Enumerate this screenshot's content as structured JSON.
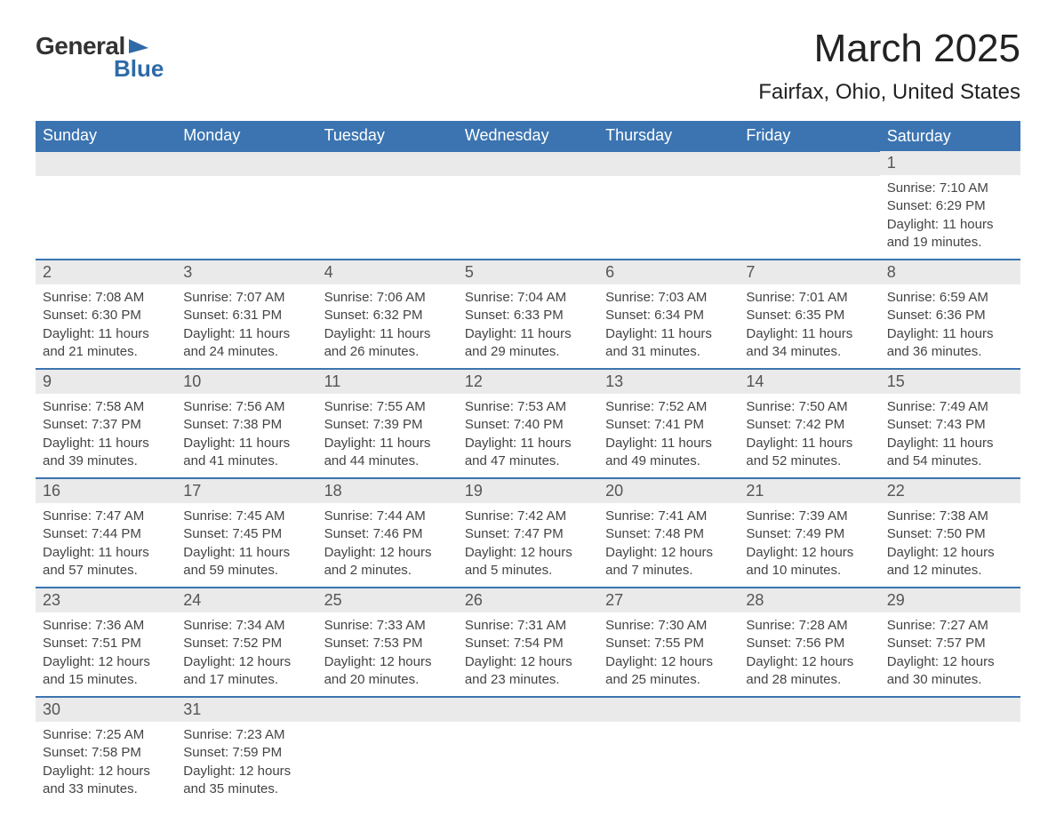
{
  "logo": {
    "general": "General",
    "blue": "Blue",
    "flag_color": "#2e6aa8"
  },
  "title": "March 2025",
  "location": "Fairfax, Ohio, United States",
  "colors": {
    "header_bg": "#3b74b0",
    "header_text": "#ffffff",
    "day_num_bg": "#eaeaea",
    "border": "#3b74b0",
    "text": "#3b3b3b"
  },
  "days_of_week": [
    "Sunday",
    "Monday",
    "Tuesday",
    "Wednesday",
    "Thursday",
    "Friday",
    "Saturday"
  ],
  "weeks": [
    [
      null,
      null,
      null,
      null,
      null,
      null,
      {
        "num": "1",
        "sunrise": "7:10 AM",
        "sunset": "6:29 PM",
        "daylight": "11 hours and 19 minutes."
      }
    ],
    [
      {
        "num": "2",
        "sunrise": "7:08 AM",
        "sunset": "6:30 PM",
        "daylight": "11 hours and 21 minutes."
      },
      {
        "num": "3",
        "sunrise": "7:07 AM",
        "sunset": "6:31 PM",
        "daylight": "11 hours and 24 minutes."
      },
      {
        "num": "4",
        "sunrise": "7:06 AM",
        "sunset": "6:32 PM",
        "daylight": "11 hours and 26 minutes."
      },
      {
        "num": "5",
        "sunrise": "7:04 AM",
        "sunset": "6:33 PM",
        "daylight": "11 hours and 29 minutes."
      },
      {
        "num": "6",
        "sunrise": "7:03 AM",
        "sunset": "6:34 PM",
        "daylight": "11 hours and 31 minutes."
      },
      {
        "num": "7",
        "sunrise": "7:01 AM",
        "sunset": "6:35 PM",
        "daylight": "11 hours and 34 minutes."
      },
      {
        "num": "8",
        "sunrise": "6:59 AM",
        "sunset": "6:36 PM",
        "daylight": "11 hours and 36 minutes."
      }
    ],
    [
      {
        "num": "9",
        "sunrise": "7:58 AM",
        "sunset": "7:37 PM",
        "daylight": "11 hours and 39 minutes."
      },
      {
        "num": "10",
        "sunrise": "7:56 AM",
        "sunset": "7:38 PM",
        "daylight": "11 hours and 41 minutes."
      },
      {
        "num": "11",
        "sunrise": "7:55 AM",
        "sunset": "7:39 PM",
        "daylight": "11 hours and 44 minutes."
      },
      {
        "num": "12",
        "sunrise": "7:53 AM",
        "sunset": "7:40 PM",
        "daylight": "11 hours and 47 minutes."
      },
      {
        "num": "13",
        "sunrise": "7:52 AM",
        "sunset": "7:41 PM",
        "daylight": "11 hours and 49 minutes."
      },
      {
        "num": "14",
        "sunrise": "7:50 AM",
        "sunset": "7:42 PM",
        "daylight": "11 hours and 52 minutes."
      },
      {
        "num": "15",
        "sunrise": "7:49 AM",
        "sunset": "7:43 PM",
        "daylight": "11 hours and 54 minutes."
      }
    ],
    [
      {
        "num": "16",
        "sunrise": "7:47 AM",
        "sunset": "7:44 PM",
        "daylight": "11 hours and 57 minutes."
      },
      {
        "num": "17",
        "sunrise": "7:45 AM",
        "sunset": "7:45 PM",
        "daylight": "11 hours and 59 minutes."
      },
      {
        "num": "18",
        "sunrise": "7:44 AM",
        "sunset": "7:46 PM",
        "daylight": "12 hours and 2 minutes."
      },
      {
        "num": "19",
        "sunrise": "7:42 AM",
        "sunset": "7:47 PM",
        "daylight": "12 hours and 5 minutes."
      },
      {
        "num": "20",
        "sunrise": "7:41 AM",
        "sunset": "7:48 PM",
        "daylight": "12 hours and 7 minutes."
      },
      {
        "num": "21",
        "sunrise": "7:39 AM",
        "sunset": "7:49 PM",
        "daylight": "12 hours and 10 minutes."
      },
      {
        "num": "22",
        "sunrise": "7:38 AM",
        "sunset": "7:50 PM",
        "daylight": "12 hours and 12 minutes."
      }
    ],
    [
      {
        "num": "23",
        "sunrise": "7:36 AM",
        "sunset": "7:51 PM",
        "daylight": "12 hours and 15 minutes."
      },
      {
        "num": "24",
        "sunrise": "7:34 AM",
        "sunset": "7:52 PM",
        "daylight": "12 hours and 17 minutes."
      },
      {
        "num": "25",
        "sunrise": "7:33 AM",
        "sunset": "7:53 PM",
        "daylight": "12 hours and 20 minutes."
      },
      {
        "num": "26",
        "sunrise": "7:31 AM",
        "sunset": "7:54 PM",
        "daylight": "12 hours and 23 minutes."
      },
      {
        "num": "27",
        "sunrise": "7:30 AM",
        "sunset": "7:55 PM",
        "daylight": "12 hours and 25 minutes."
      },
      {
        "num": "28",
        "sunrise": "7:28 AM",
        "sunset": "7:56 PM",
        "daylight": "12 hours and 28 minutes."
      },
      {
        "num": "29",
        "sunrise": "7:27 AM",
        "sunset": "7:57 PM",
        "daylight": "12 hours and 30 minutes."
      }
    ],
    [
      {
        "num": "30",
        "sunrise": "7:25 AM",
        "sunset": "7:58 PM",
        "daylight": "12 hours and 33 minutes."
      },
      {
        "num": "31",
        "sunrise": "7:23 AM",
        "sunset": "7:59 PM",
        "daylight": "12 hours and 35 minutes."
      },
      null,
      null,
      null,
      null,
      null
    ]
  ],
  "labels": {
    "sunrise": "Sunrise:",
    "sunset": "Sunset:",
    "daylight": "Daylight:"
  }
}
